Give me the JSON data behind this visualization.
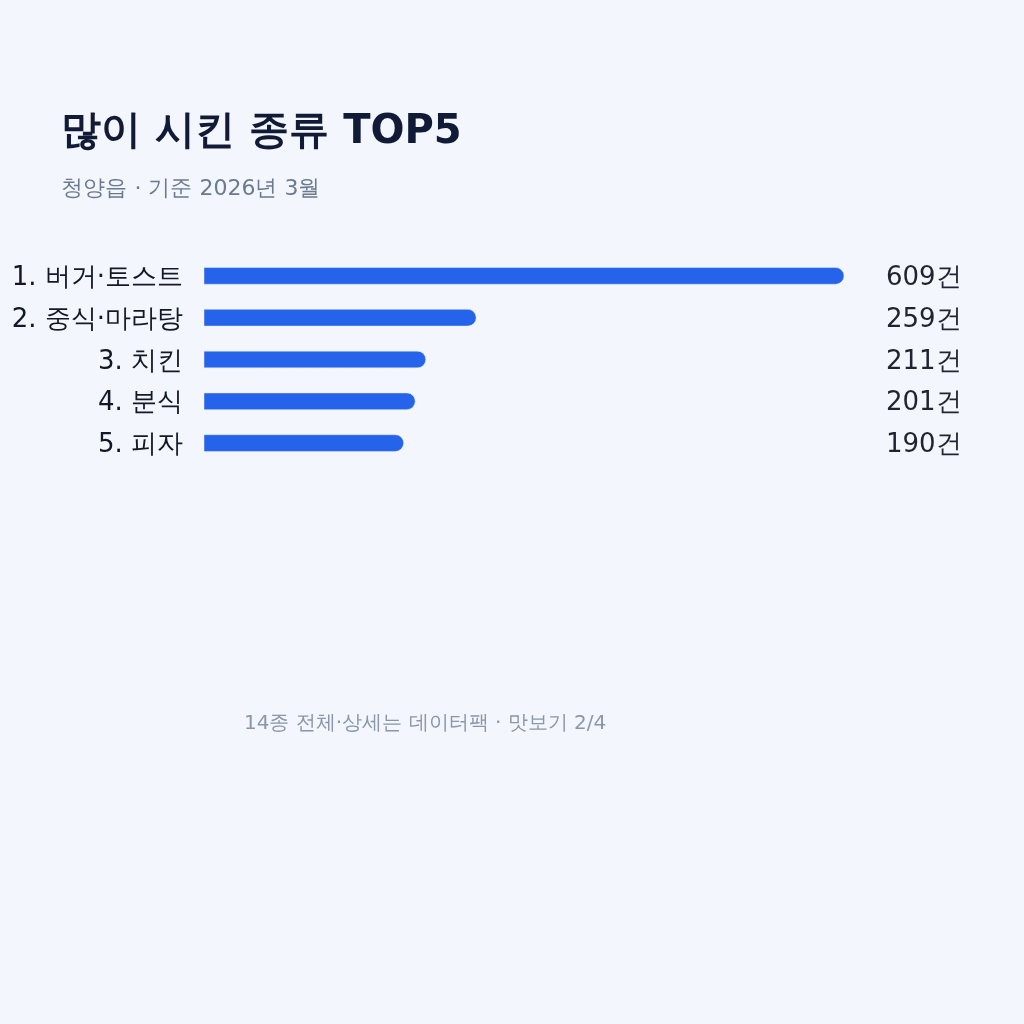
{
  "chart_data": {
    "type": "bar",
    "orientation": "horizontal",
    "title": "많이 시킨 종류 TOP5",
    "subtitle": "청양읍 · 기준 2026년 3월",
    "categories": [
      "1. 버거·토스트",
      "2. 중식·마라탕",
      "3. 치킨",
      "4. 분식",
      "5. 피자"
    ],
    "values": [
      609,
      259,
      211,
      201,
      190
    ],
    "value_labels": [
      "609건",
      "259건",
      "211건",
      "201건",
      "190건"
    ],
    "color": "#2563eb",
    "xlim": [
      0,
      609
    ],
    "grid": false,
    "legend": false,
    "tick_labels": "y",
    "annotations": [
      "14종 전체·상세는 데이터팩 · 맛보기 2/4"
    ]
  }
}
